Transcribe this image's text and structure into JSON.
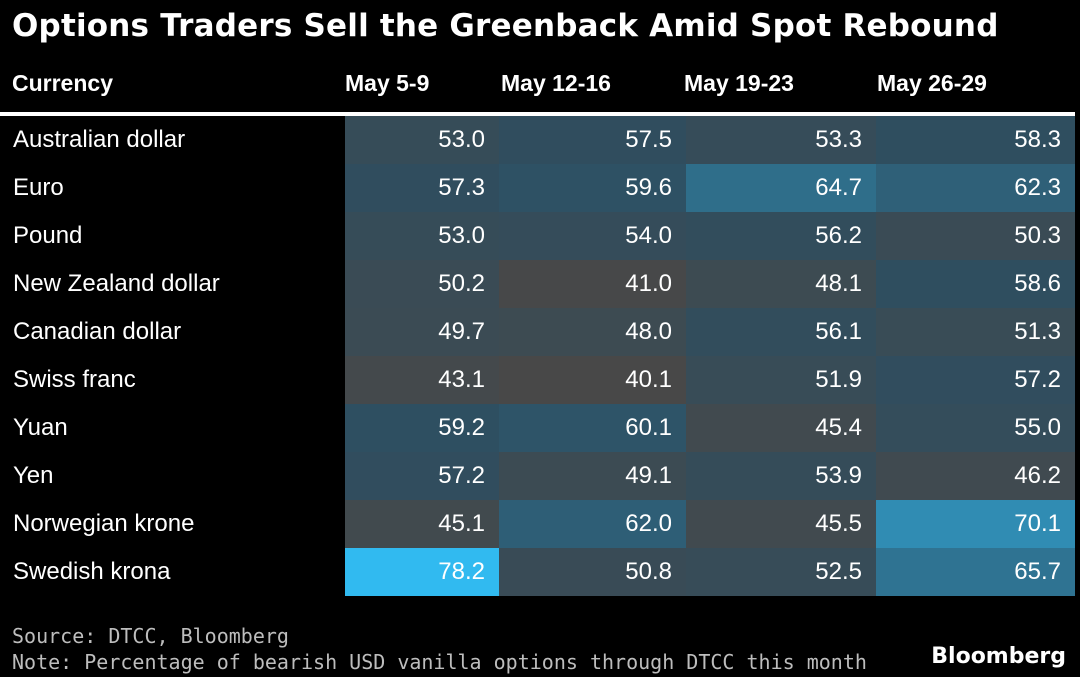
{
  "title": "Options Traders Sell the Greenback Amid Spot Rebound",
  "chart_data": {
    "type": "table",
    "title": "Options Traders Sell the Greenback Amid Spot Rebound",
    "row_header": "Currency",
    "columns": [
      "May 5-9",
      "May 12-16",
      "May 19-23",
      "May 26-29"
    ],
    "rows": [
      {
        "label": "Australian dollar",
        "values": [
          53.0,
          57.5,
          53.3,
          58.3
        ]
      },
      {
        "label": "Euro",
        "values": [
          57.3,
          59.6,
          64.7,
          62.3
        ]
      },
      {
        "label": "Pound",
        "values": [
          53.0,
          54.0,
          56.2,
          50.3
        ]
      },
      {
        "label": "New Zealand dollar",
        "values": [
          50.2,
          41.0,
          48.1,
          58.6
        ]
      },
      {
        "label": "Canadian dollar",
        "values": [
          49.7,
          48.0,
          56.1,
          51.3
        ]
      },
      {
        "label": "Swiss franc",
        "values": [
          43.1,
          40.1,
          51.9,
          57.2
        ]
      },
      {
        "label": "Yuan",
        "values": [
          59.2,
          60.1,
          45.4,
          55.0
        ]
      },
      {
        "label": "Yen",
        "values": [
          57.2,
          49.1,
          53.9,
          46.2
        ]
      },
      {
        "label": "Norwegian krone",
        "values": [
          45.1,
          62.0,
          45.5,
          70.1
        ]
      },
      {
        "label": "Swedish krona",
        "values": [
          78.2,
          50.8,
          52.5,
          65.7
        ]
      }
    ]
  },
  "footer": {
    "source": "Source: DTCC, Bloomberg",
    "note": "Note: Percentage of bearish USD vanilla options through DTCC this month"
  },
  "brand": "Bloomberg"
}
